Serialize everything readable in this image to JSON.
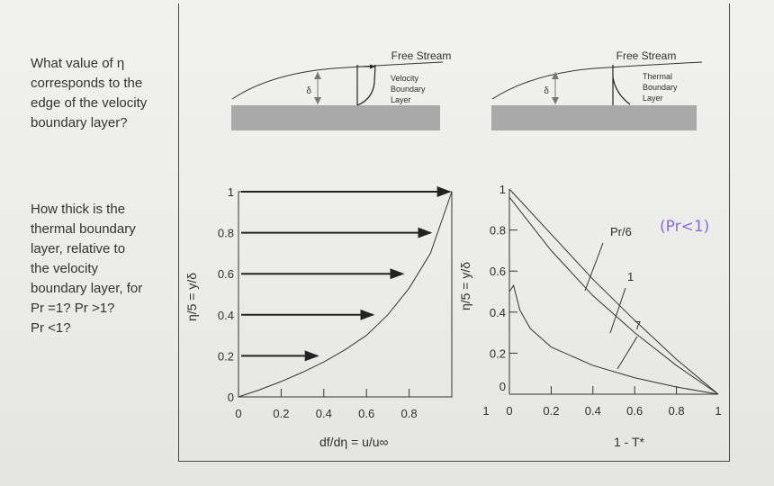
{
  "questions": {
    "q1": "What value of η\ncorresponds to the\nedge of the velocity\nboundary layer?",
    "q2": "How thick is the\nthermal boundary\nlayer, relative to\nthe velocity\nboundary layer, for\nPr =1? Pr >1?\nPr <1?"
  },
  "diagrams": {
    "velocity": {
      "free_stream": "Free Stream",
      "delta": "δ",
      "layer_line1": "Velocity",
      "layer_line2": "Boundary",
      "layer_line3": "Layer"
    },
    "thermal": {
      "free_stream": "Free Stream",
      "delta": "δ",
      "layer_line1": "Thermal",
      "layer_line2": "Boundary",
      "layer_line3": "Layer"
    }
  },
  "chart_data": [
    {
      "type": "line",
      "xlabel": "df/dη = u/u∞",
      "ylabel": "η/5 = y/δ",
      "xticks": [
        "0",
        "0.2",
        "0.4",
        "0.6",
        "0.8"
      ],
      "yticks": [
        "0",
        "0.2",
        "0.4",
        "0.6",
        "0.8",
        "1"
      ],
      "xlim": [
        0,
        1
      ],
      "ylim": [
        0,
        1
      ],
      "series": [
        {
          "x": [
            0,
            0.1,
            0.2,
            0.3,
            0.4,
            0.5,
            0.6,
            0.7,
            0.8,
            0.9,
            1.0
          ],
          "y": [
            0,
            0.035,
            0.075,
            0.12,
            0.17,
            0.23,
            0.3,
            0.4,
            0.53,
            0.7,
            1.0
          ]
        }
      ],
      "arrows": [
        {
          "y": 1.0,
          "u": 0.99
        },
        {
          "y": 0.8,
          "u": 0.9
        },
        {
          "y": 0.6,
          "u": 0.77
        },
        {
          "y": 0.4,
          "u": 0.63
        },
        {
          "y": 0.2,
          "u": 0.37
        }
      ]
    },
    {
      "type": "line",
      "xlabel": "1 - T*",
      "ylabel": "η/5 = y/δ",
      "xticks": [
        "0",
        "0.2",
        "0.4",
        "0.6",
        "0.8",
        "1"
      ],
      "yticks": [
        "0",
        "0.2",
        "0.4",
        "0.6",
        "0.8",
        "1"
      ],
      "xlim": [
        0,
        1
      ],
      "ylim": [
        0,
        1
      ],
      "series": [
        {
          "name": "Pr/6",
          "x": [
            0,
            0.2,
            0.4,
            0.6,
            0.8,
            1.0
          ],
          "y": [
            1.0,
            0.78,
            0.56,
            0.36,
            0.17,
            0.0
          ]
        },
        {
          "name": "1",
          "x": [
            0,
            0.2,
            0.4,
            0.6,
            0.8,
            1.0
          ],
          "y": [
            0.96,
            0.7,
            0.48,
            0.3,
            0.14,
            0.0
          ]
        },
        {
          "name": "7",
          "x": [
            0,
            0.02,
            0.05,
            0.1,
            0.2,
            0.4,
            0.6,
            0.8,
            1.0
          ],
          "y": [
            0.5,
            0.53,
            0.41,
            0.32,
            0.23,
            0.14,
            0.08,
            0.035,
            0.0
          ]
        }
      ],
      "annotation_handwritten": "(Pr<1)"
    }
  ]
}
